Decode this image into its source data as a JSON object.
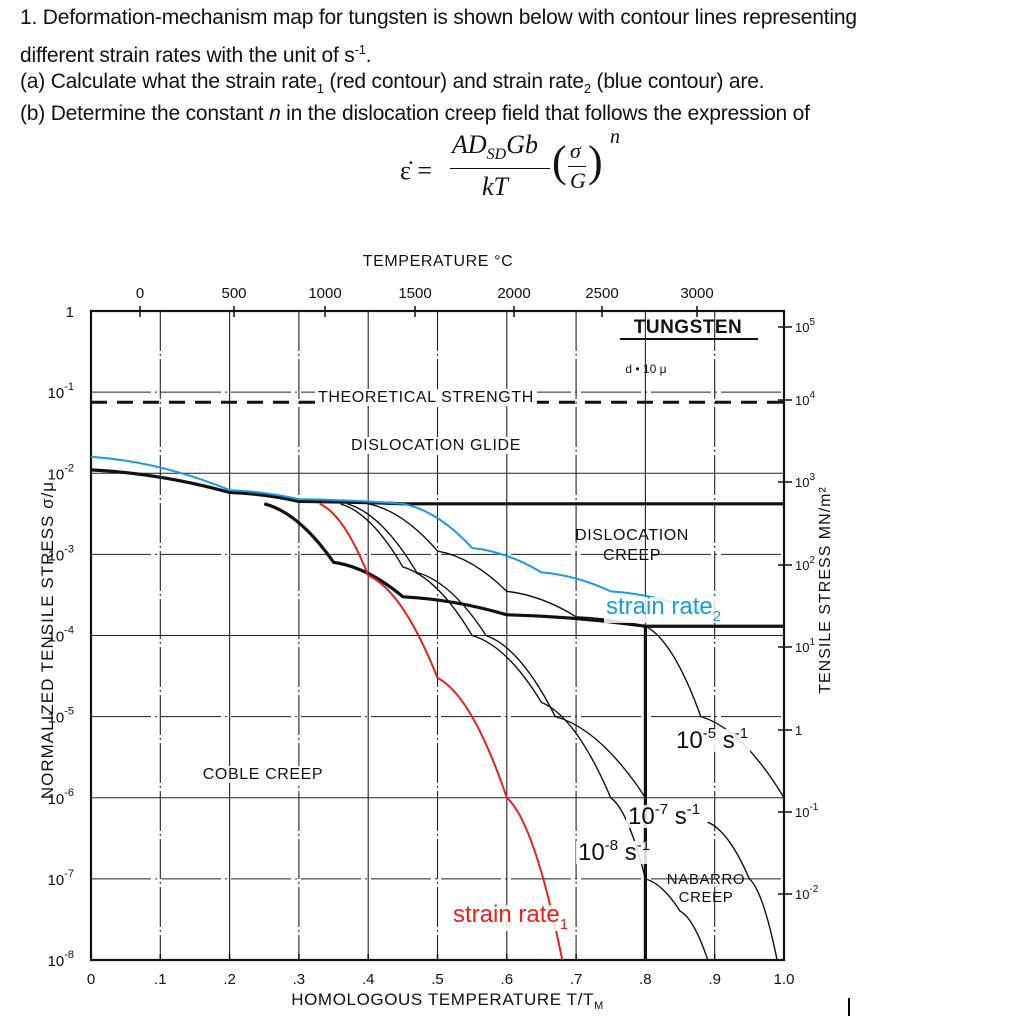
{
  "question": {
    "line1": "1. Deformation-mechanism map for tungsten is shown below with contour lines representing",
    "line2_pre": "different strain rates with the unit of s",
    "line2_sup": "-1",
    "line2_post": ".",
    "part_a_pre": "(a) Calculate what the strain rate",
    "part_a_sub1": "1",
    "part_a_mid": " (red contour) and strain rate",
    "part_a_sub2": "2",
    "part_a_post": " (blue contour) are.",
    "part_b_pre": "(b) Determine the constant ",
    "part_b_var": "n",
    "part_b_post": " in the dislocation creep field that follows the expression of"
  },
  "formula": {
    "lhs": "ε̇ =",
    "numerator": "AD",
    "numerator_sub": "SD",
    "numerator_tail": "Gb",
    "denominator": "kT",
    "ratio_top": "σ",
    "ratio_bottom": "G",
    "exponent": "n"
  },
  "chart_data": {
    "type": "line",
    "title": "Deformation-mechanism map — TUNGSTEN",
    "material_label": "TUNGSTEN",
    "grain_size_label": "d • 10 μ",
    "xlabel": "HOMOLOGOUS TEMPERATURE T/T_M",
    "xlabel_main": "HOMOLOGOUS TEMPERATURE  T/T",
    "xlabel_sub": "M",
    "x_ticks": [
      "0",
      ".1",
      ".2",
      ".3",
      ".4",
      ".5",
      ".6",
      ".7",
      ".8",
      ".9",
      "1.0"
    ],
    "xlim": [
      0,
      1.0
    ],
    "top_xlabel": "TEMPERATURE °C",
    "top_x_ticks": [
      "0",
      "500",
      "1000",
      "1500",
      "2000",
      "2500",
      "3000"
    ],
    "ylabel": "NORMALIZED TENSILE STRESS σ/μ",
    "y_ticks": [
      "1",
      "10^-1",
      "10^-2",
      "10^-3",
      "10^-4",
      "10^-5",
      "10^-6",
      "10^-7",
      "10^-8"
    ],
    "ylim": [
      1e-08,
      1
    ],
    "yscale": "log",
    "right_ylabel": "TENSILE STRESS MN/m²",
    "right_y_ticks": [
      "10^5",
      "10^4",
      "10^3",
      "10^2",
      "10^1",
      "1",
      "10^-1",
      "10^-2"
    ],
    "grid": true,
    "field_labels": [
      "THEORETICAL STRENGTH",
      "DISLOCATION GLIDE",
      "DISLOCATION CREEP",
      "COBLE CREEP",
      "NABARRO CREEP"
    ],
    "contour_labels": [
      {
        "text": "10^-5 s^-1",
        "x": 0.88,
        "y": 1.2e-05
      },
      {
        "text": "10^-7 s^-1",
        "x": 0.8,
        "y": 1e-06
      },
      {
        "text": "10^-8 s^-1",
        "x": 0.75,
        "y": 4e-07
      },
      {
        "text": "strain rate_1",
        "x": 0.65,
        "y": 1.5e-07,
        "color": "#e8201a"
      },
      {
        "text": "strain rate_2",
        "x": 0.85,
        "y": 0.00016,
        "color": "#1a9be0"
      }
    ],
    "series": [
      {
        "name": "theoretical strength",
        "style": "dashed",
        "x": [
          0,
          1.0
        ],
        "y": [
          0.075,
          0.075
        ]
      },
      {
        "name": "glide/creep boundary",
        "x": [
          0,
          0.2,
          0.3,
          0.45,
          0.8,
          1.0
        ],
        "y": [
          0.011,
          0.0058,
          0.0045,
          0.0042,
          0.0042,
          0.0042
        ]
      },
      {
        "name": "creep/diffusion boundary",
        "x": [
          0.25,
          0.35,
          0.45,
          0.6,
          0.8,
          1.0
        ],
        "y": [
          0.0042,
          0.0008,
          0.0003,
          0.00018,
          0.00013,
          0.00013
        ]
      },
      {
        "name": "coble/nabarro boundary",
        "x": [
          0.8,
          0.8
        ],
        "y": [
          0.00013,
          1e-08
        ]
      },
      {
        "name": "strain rate_1 (red)",
        "color": "#e8201a",
        "x": [
          0.33,
          0.4,
          0.5,
          0.6,
          0.68
        ],
        "y": [
          0.0042,
          0.00055,
          3e-05,
          1e-06,
          1e-08
        ]
      },
      {
        "name": "strain rate_2 (blue)",
        "color": "#1a9be0",
        "x": [
          0,
          0.2,
          0.3,
          0.45,
          0.55,
          0.65,
          0.75,
          0.88
        ],
        "y": [
          0.016,
          0.0062,
          0.0048,
          0.0042,
          0.0012,
          0.0006,
          0.00035,
          0.0002
        ]
      },
      {
        "name": "10^-8 s^-1",
        "x": [
          0.36,
          0.45,
          0.55,
          0.65,
          0.75,
          0.8,
          0.85,
          0.89
        ],
        "y": [
          0.0042,
          0.0007,
          0.0001,
          1.5e-05,
          1e-06,
          1e-07,
          4e-08,
          1e-08
        ]
      },
      {
        "name": "10^-7 s^-1",
        "x": [
          0.37,
          0.47,
          0.57,
          0.67,
          0.8
        ],
        "y": [
          0.0042,
          0.0006,
          0.0001,
          1e-05,
          1e-06
        ]
      },
      {
        "name": "10^-5 s^-1",
        "x": [
          0.4,
          0.5,
          0.6,
          0.7,
          0.8,
          0.88,
          1.0
        ],
        "y": [
          0.0042,
          0.0011,
          0.00035,
          0.00017,
          0.00013,
          1e-05,
          1e-06
        ]
      },
      {
        "name": "nabarro contour",
        "x": [
          0.89,
          0.95,
          0.99
        ],
        "y": [
          5e-07,
          1e-07,
          1e-08
        ]
      }
    ]
  },
  "colors": {
    "red_contour": "#e8201a",
    "blue_contour": "#1a9be0",
    "ink": "#111111"
  }
}
